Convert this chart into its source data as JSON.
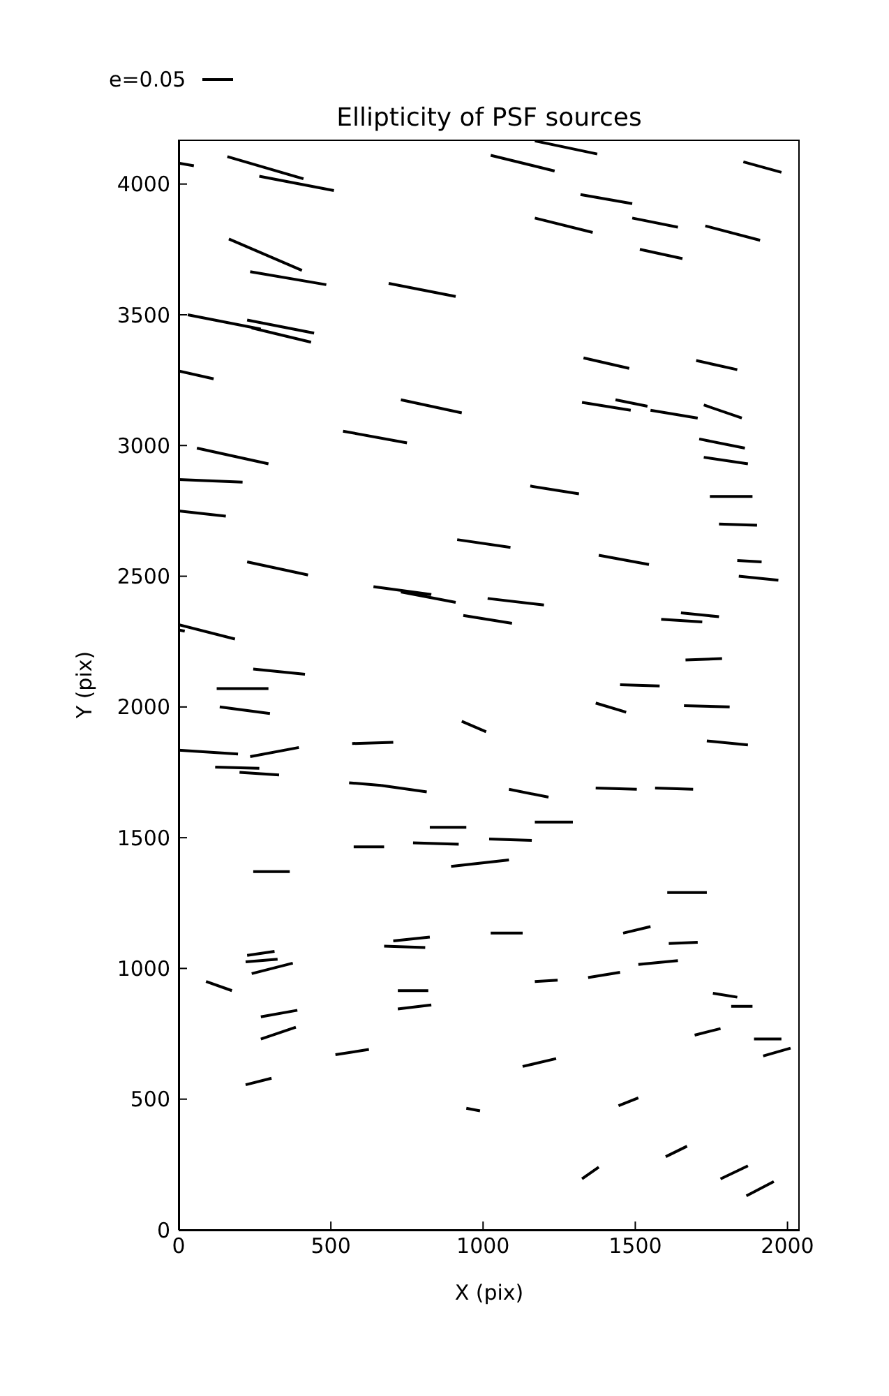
{
  "chart_data": {
    "type": "line",
    "title": "Ellipticity of PSF sources",
    "xlabel": "X (pix)",
    "ylabel": "Y (pix)",
    "xlim": [
      0,
      2040
    ],
    "xticks": [
      0,
      500,
      1000,
      1500,
      2000
    ],
    "ylim": [
      0,
      4170
    ],
    "yticks": [
      0,
      500,
      1000,
      1500,
      2000,
      2500,
      3000,
      3500,
      4000
    ],
    "legend": "top left",
    "marker": "none",
    "line_style": "solid",
    "series": [
      {
        "name": "e=0.05",
        "color": "#000000",
        "x": [
          0,
          50,
          null,
          160,
          410,
          null,
          265,
          510,
          null,
          1025,
          1235,
          null,
          1170,
          1375,
          null,
          1855,
          1980,
          null,
          1320,
          1490,
          null,
          1170,
          1360,
          null,
          1490,
          1640,
          null,
          1730,
          1910,
          null,
          1515,
          1655,
          null,
          165,
          405,
          null,
          235,
          485,
          null,
          690,
          910,
          null,
          30,
          270,
          null,
          225,
          445,
          null,
          240,
          435,
          null,
          0,
          115,
          null,
          1330,
          1480,
          null,
          1700,
          1835,
          null,
          1325,
          1485,
          null,
          1435,
          1540,
          null,
          1550,
          1705,
          null,
          1725,
          1850,
          null,
          1710,
          1860,
          null,
          1725,
          1870,
          null,
          1155,
          1315,
          null,
          1745,
          1885,
          null,
          730,
          930,
          null,
          540,
          750,
          null,
          60,
          295,
          null,
          0,
          210,
          null,
          0,
          155,
          null,
          915,
          1090,
          null,
          225,
          425,
          null,
          640,
          830,
          null,
          730,
          910,
          null,
          935,
          1095,
          null,
          1015,
          1200,
          null,
          0,
          185,
          null,
          0,
          20,
          null,
          245,
          415,
          null,
          125,
          295,
          null,
          135,
          300,
          null,
          930,
          1010,
          null,
          570,
          705,
          null,
          0,
          195,
          null,
          235,
          395,
          null,
          120,
          265,
          null,
          200,
          330,
          null,
          560,
          665,
          null,
          665,
          815,
          null,
          825,
          945,
          null,
          575,
          675,
          null,
          770,
          920,
          null,
          895,
          1085,
          null,
          1020,
          1160,
          null,
          1775,
          1900,
          null,
          1380,
          1545,
          null,
          1835,
          1915,
          null,
          1840,
          1970,
          null,
          1585,
          1720,
          null,
          1650,
          1775,
          null,
          1665,
          1785,
          null,
          1450,
          1580,
          null,
          1370,
          1470,
          null,
          1660,
          1810,
          null,
          1735,
          1870,
          null,
          1085,
          1215,
          null,
          1370,
          1505,
          null,
          1565,
          1690,
          null,
          1170,
          1295,
          null,
          245,
          365,
          null,
          1025,
          1130,
          null,
          225,
          315,
          null,
          220,
          325,
          null,
          240,
          375,
          null,
          90,
          175,
          null,
          675,
          810,
          null,
          705,
          825,
          null,
          720,
          820,
          null,
          720,
          830,
          null,
          270,
          390,
          null,
          270,
          385,
          null,
          515,
          625,
          null,
          220,
          305,
          null,
          945,
          990,
          null,
          1605,
          1735,
          null,
          1460,
          1550,
          null,
          1610,
          1705,
          null,
          1510,
          1640,
          null,
          1345,
          1450,
          null,
          1170,
          1245,
          null,
          1755,
          1835,
          null,
          1815,
          1885,
          null,
          1695,
          1780,
          null,
          1890,
          1980,
          null,
          1920,
          2010,
          null,
          1130,
          1240,
          null,
          1445,
          1510,
          null,
          1600,
          1670,
          null,
          1325,
          1380,
          null,
          1780,
          1870,
          null,
          1865,
          1955
        ],
        "values": [
          4080,
          4070,
          null,
          4105,
          4020,
          null,
          4030,
          3975,
          null,
          4110,
          4050,
          null,
          4165,
          4115,
          null,
          4085,
          4045,
          null,
          3960,
          3925,
          null,
          3870,
          3815,
          null,
          3870,
          3835,
          null,
          3840,
          3785,
          null,
          3750,
          3715,
          null,
          3790,
          3670,
          null,
          3665,
          3615,
          null,
          3620,
          3570,
          null,
          3500,
          3445,
          null,
          3480,
          3430,
          null,
          3450,
          3395,
          null,
          3285,
          3255,
          null,
          3335,
          3295,
          null,
          3325,
          3290,
          null,
          3165,
          3135,
          null,
          3175,
          3150,
          null,
          3135,
          3105,
          null,
          3155,
          3105,
          null,
          3025,
          2990,
          null,
          2955,
          2930,
          null,
          2845,
          2815,
          null,
          2805,
          2805,
          null,
          3175,
          3125,
          null,
          3055,
          3010,
          null,
          2990,
          2930,
          null,
          2870,
          2860,
          null,
          2750,
          2730,
          null,
          2640,
          2610,
          null,
          2555,
          2505,
          null,
          2460,
          2430,
          null,
          2440,
          2400,
          null,
          2350,
          2320,
          null,
          2415,
          2390,
          null,
          2315,
          2260,
          null,
          2295,
          2290,
          null,
          2145,
          2125,
          null,
          2070,
          2070,
          null,
          2000,
          1975,
          null,
          1945,
          1905,
          null,
          1860,
          1865,
          null,
          1835,
          1820,
          null,
          1810,
          1845,
          null,
          1770,
          1765,
          null,
          1750,
          1740,
          null,
          1710,
          1700,
          null,
          1700,
          1675,
          null,
          1540,
          1540,
          null,
          1465,
          1465,
          null,
          1480,
          1475,
          null,
          1390,
          1415,
          null,
          1495,
          1490,
          null,
          2700,
          2695,
          null,
          2580,
          2545,
          null,
          2560,
          2555,
          null,
          2500,
          2485,
          null,
          2335,
          2325,
          null,
          2360,
          2345,
          null,
          2180,
          2185,
          null,
          2085,
          2080,
          null,
          2015,
          1980,
          null,
          2005,
          2000,
          null,
          1870,
          1855,
          null,
          1685,
          1655,
          null,
          1690,
          1685,
          null,
          1690,
          1685,
          null,
          1560,
          1560,
          null,
          1370,
          1370,
          null,
          1135,
          1135,
          null,
          1050,
          1065,
          null,
          1025,
          1035,
          null,
          980,
          1020,
          null,
          950,
          915,
          null,
          1085,
          1080,
          null,
          1105,
          1120,
          null,
          915,
          915,
          null,
          845,
          860,
          null,
          815,
          840,
          null,
          730,
          775,
          null,
          670,
          690,
          null,
          555,
          580,
          null,
          465,
          455,
          null,
          1290,
          1290,
          null,
          1135,
          1160,
          null,
          1095,
          1100,
          null,
          1015,
          1030,
          null,
          965,
          985,
          null,
          950,
          955,
          null,
          905,
          890,
          null,
          855,
          855,
          null,
          745,
          770,
          null,
          730,
          730,
          null,
          665,
          695,
          null,
          625,
          655,
          null,
          475,
          505,
          null,
          280,
          320,
          null,
          195,
          240,
          null,
          195,
          245,
          null,
          130,
          185
        ]
      }
    ]
  }
}
